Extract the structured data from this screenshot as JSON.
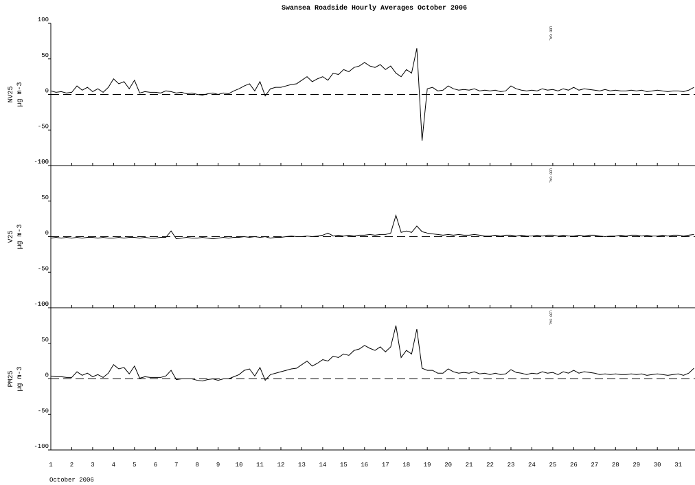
{
  "chart_data": {
    "type": "line",
    "title": "Swansea Roadside Hourly Averages October 2006",
    "xlabel": "October 2006",
    "annotation": {
      "text": "LDD CAL",
      "x": 24.85
    },
    "xlim": [
      1,
      31.8
    ],
    "xticks": [
      1,
      2,
      3,
      4,
      5,
      6,
      7,
      8,
      9,
      10,
      11,
      12,
      13,
      14,
      15,
      16,
      17,
      18,
      19,
      20,
      21,
      22,
      23,
      24,
      25,
      26,
      27,
      28,
      29,
      30,
      31
    ],
    "ylim": [
      -100,
      100
    ],
    "yticks": [
      -100,
      -50,
      0,
      50,
      100
    ],
    "x": [
      1,
      1.25,
      1.5,
      1.75,
      2,
      2.25,
      2.5,
      2.75,
      3,
      3.25,
      3.5,
      3.75,
      4,
      4.25,
      4.5,
      4.75,
      5,
      5.25,
      5.5,
      5.75,
      6,
      6.25,
      6.5,
      6.75,
      7,
      7.25,
      7.5,
      7.75,
      8,
      8.25,
      8.5,
      8.75,
      9,
      9.25,
      9.5,
      9.75,
      10,
      10.25,
      10.5,
      10.75,
      11,
      11.25,
      11.5,
      11.75,
      12,
      12.25,
      12.5,
      12.75,
      13,
      13.25,
      13.5,
      13.75,
      14,
      14.25,
      14.5,
      14.75,
      15,
      15.25,
      15.5,
      15.75,
      16,
      16.25,
      16.5,
      16.75,
      17,
      17.25,
      17.5,
      17.75,
      18,
      18.25,
      18.5,
      18.75,
      19,
      19.25,
      19.5,
      19.75,
      20,
      20.25,
      20.5,
      20.75,
      21,
      21.25,
      21.5,
      21.75,
      22,
      22.25,
      22.5,
      22.75,
      23,
      23.25,
      23.5,
      23.75,
      24,
      24.25,
      24.5,
      24.75,
      25,
      25.25,
      25.5,
      25.75,
      26,
      26.25,
      26.5,
      26.75,
      27,
      27.25,
      27.5,
      27.75,
      28,
      28.25,
      28.5,
      28.75,
      29,
      29.25,
      29.5,
      29.75,
      30,
      30.25,
      30.5,
      30.75,
      31,
      31.25,
      31.5,
      31.75
    ],
    "series": [
      {
        "name": "NV25",
        "unit": "µg m-3",
        "color": "#000000",
        "values": [
          5,
          3,
          4,
          2,
          3,
          12,
          6,
          10,
          4,
          8,
          3,
          10,
          22,
          15,
          18,
          8,
          20,
          2,
          4,
          3,
          3,
          2,
          5,
          4,
          2,
          3,
          1,
          2,
          0,
          -1,
          1,
          2,
          0,
          2,
          1,
          5,
          8,
          12,
          15,
          5,
          18,
          -2,
          8,
          10,
          10,
          12,
          14,
          15,
          20,
          25,
          18,
          22,
          25,
          20,
          30,
          28,
          35,
          32,
          38,
          40,
          45,
          40,
          38,
          42,
          35,
          40,
          30,
          25,
          35,
          30,
          65,
          -65,
          8,
          10,
          5,
          6,
          12,
          8,
          6,
          7,
          6,
          8,
          5,
          6,
          5,
          6,
          4,
          5,
          12,
          8,
          6,
          5,
          6,
          5,
          8,
          6,
          7,
          5,
          8,
          6,
          10,
          6,
          8,
          7,
          6,
          5,
          7,
          5,
          6,
          5,
          5,
          6,
          5,
          6,
          4,
          5,
          6,
          5,
          4,
          5,
          5,
          4,
          6,
          10
        ]
      },
      {
        "name": "V25",
        "unit": "µg m-3",
        "color": "#000000",
        "values": [
          -2,
          -1,
          -2,
          -1,
          -2,
          -1,
          -2,
          -1,
          -1,
          -2,
          -1,
          -2,
          -2,
          -1,
          -2,
          -1,
          -1,
          -2,
          -1,
          -2,
          -2,
          -1,
          -1,
          8,
          -3,
          -2,
          -1,
          -2,
          -2,
          -1,
          -2,
          -3,
          -2,
          -1,
          -2,
          -1,
          -1,
          0,
          -1,
          0,
          -1,
          0,
          -2,
          -1,
          -1,
          0,
          1,
          0,
          0,
          1,
          0,
          1,
          2,
          5,
          1,
          2,
          1,
          2,
          1,
          2,
          2,
          3,
          2,
          3,
          3,
          5,
          30,
          6,
          8,
          6,
          15,
          7,
          5,
          4,
          3,
          2,
          3,
          2,
          3,
          2,
          2,
          3,
          2,
          1,
          1,
          2,
          1,
          2,
          2,
          1,
          2,
          1,
          1,
          2,
          1,
          2,
          2,
          1,
          2,
          1,
          1,
          2,
          1,
          2,
          2,
          1,
          0,
          1,
          1,
          2,
          1,
          2,
          2,
          1,
          2,
          1,
          1,
          2,
          1,
          2,
          2,
          1,
          2,
          3
        ]
      },
      {
        "name": "PM25",
        "unit": "µg m-3",
        "color": "#000000",
        "values": [
          4,
          3,
          3,
          2,
          2,
          10,
          5,
          8,
          3,
          6,
          2,
          8,
          20,
          14,
          16,
          7,
          18,
          1,
          3,
          2,
          2,
          2,
          4,
          12,
          -1,
          0,
          0,
          0,
          -2,
          -3,
          -1,
          0,
          -2,
          0,
          0,
          3,
          6,
          12,
          14,
          4,
          16,
          -2,
          6,
          8,
          10,
          12,
          14,
          15,
          20,
          25,
          18,
          22,
          27,
          25,
          32,
          30,
          35,
          33,
          40,
          42,
          47,
          43,
          40,
          45,
          38,
          45,
          75,
          30,
          40,
          35,
          70,
          15,
          12,
          12,
          8,
          8,
          14,
          10,
          8,
          9,
          8,
          10,
          7,
          8,
          6,
          8,
          6,
          7,
          13,
          9,
          8,
          6,
          8,
          7,
          10,
          8,
          9,
          6,
          10,
          8,
          12,
          8,
          10,
          9,
          8,
          6,
          7,
          6,
          7,
          6,
          6,
          7,
          6,
          7,
          5,
          6,
          7,
          6,
          5,
          6,
          7,
          5,
          8,
          15
        ]
      }
    ]
  }
}
